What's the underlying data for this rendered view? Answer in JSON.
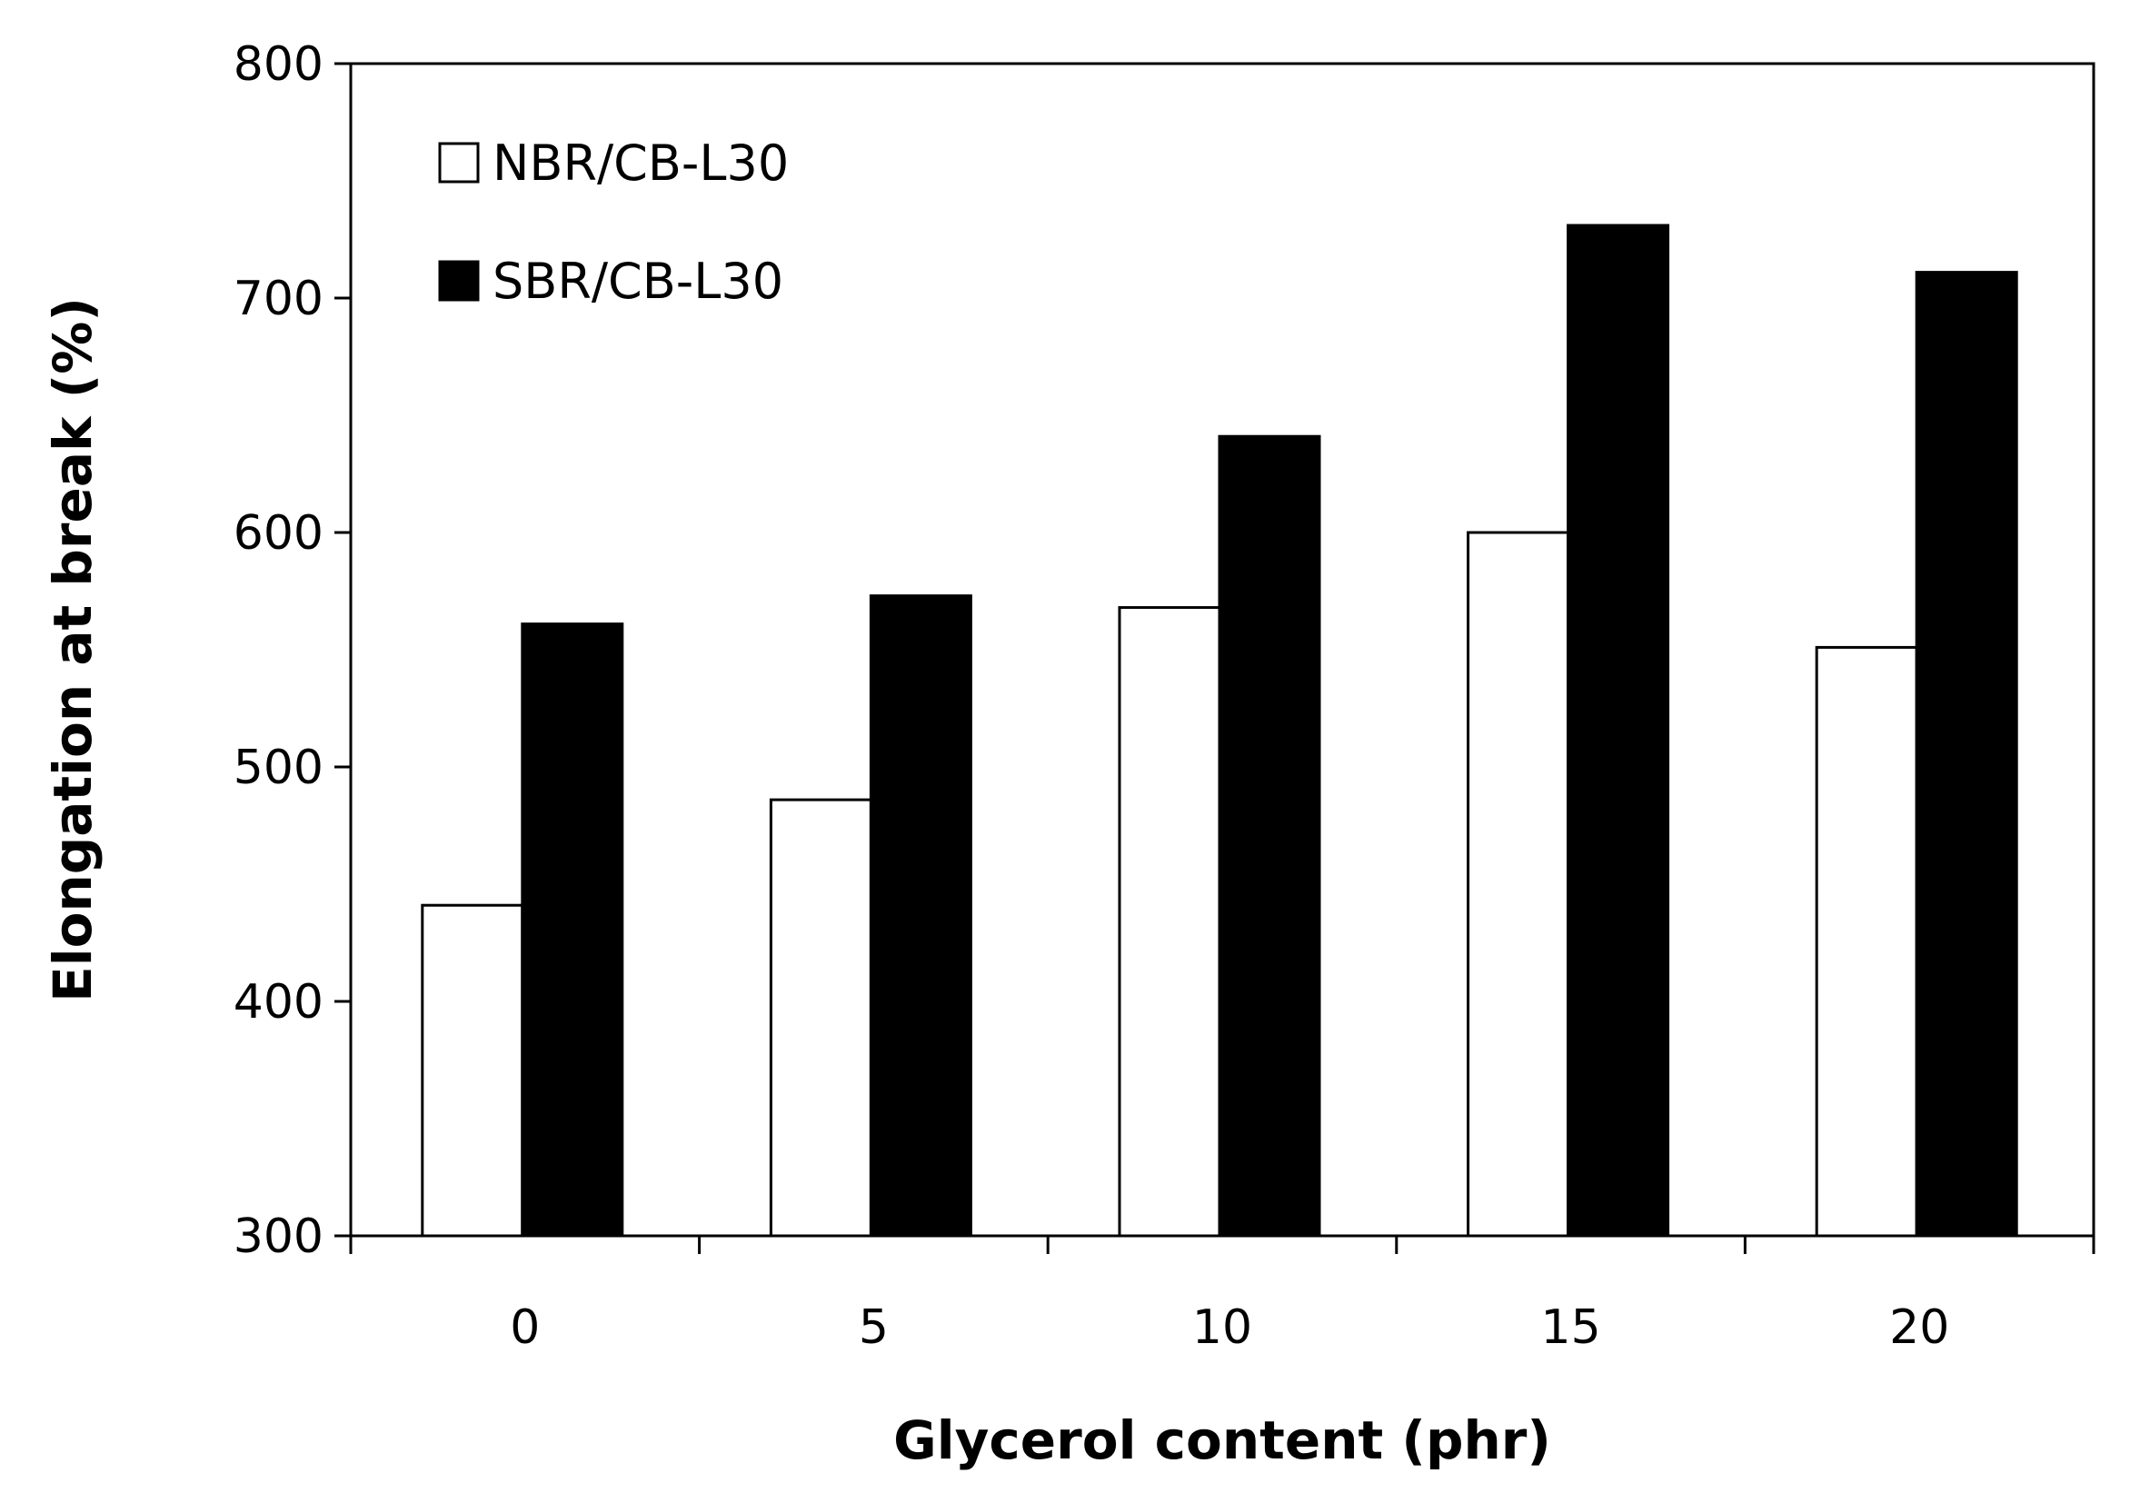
{
  "chart_data": {
    "type": "bar",
    "title": "",
    "xlabel": "Glycerol content (phr)",
    "ylabel": "Elongation at break (%)",
    "categories": [
      "0",
      "5",
      "10",
      "15",
      "20"
    ],
    "ylim": [
      300,
      800
    ],
    "yticks": [
      "300",
      "400",
      "500",
      "600",
      "700",
      "800"
    ],
    "grid": false,
    "legend_position": "top-left",
    "series": [
      {
        "name": "NBR/CB-L30",
        "values": [
          441,
          486,
          568,
          600,
          551
        ],
        "color": "#ffffff"
      },
      {
        "name": "SBR/CB-L30",
        "values": [
          561,
          573,
          641,
          731,
          711
        ],
        "color": "#000000"
      }
    ]
  }
}
